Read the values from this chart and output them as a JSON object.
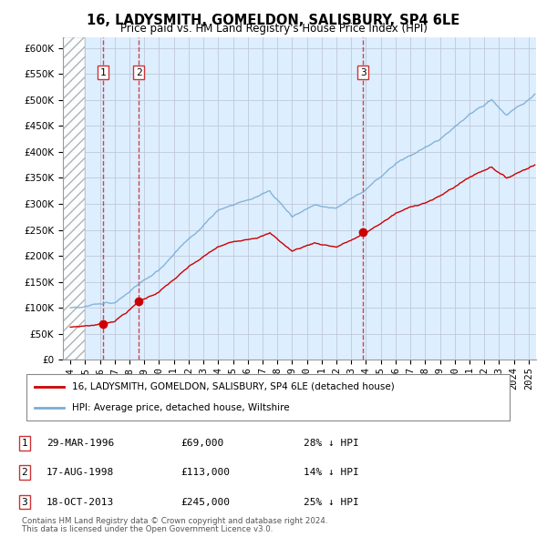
{
  "title": "16, LADYSMITH, GOMELDON, SALISBURY, SP4 6LE",
  "subtitle": "Price paid vs. HM Land Registry's House Price Index (HPI)",
  "legend_line1": "16, LADYSMITH, GOMELDON, SALISBURY, SP4 6LE (detached house)",
  "legend_line2": "HPI: Average price, detached house, Wiltshire",
  "footnote1": "Contains HM Land Registry data © Crown copyright and database right 2024.",
  "footnote2": "This data is licensed under the Open Government Licence v3.0.",
  "sale_color": "#cc0000",
  "hpi_color": "#7aadd4",
  "transactions": [
    {
      "num": 1,
      "date": "29-MAR-1996",
      "price": 69000,
      "pct": "28%",
      "year": 1996.23
    },
    {
      "num": 2,
      "date": "17-AUG-1998",
      "price": 113000,
      "pct": "14%",
      "year": 1998.63
    },
    {
      "num": 3,
      "date": "18-OCT-2013",
      "price": 245000,
      "pct": "25%",
      "year": 2013.8
    }
  ],
  "ylim": [
    0,
    620000
  ],
  "yticks": [
    0,
    50000,
    100000,
    150000,
    200000,
    250000,
    300000,
    350000,
    400000,
    450000,
    500000,
    550000,
    600000
  ],
  "xlim_start": 1993.5,
  "xlim_end": 2025.5,
  "hatch_end_year": 1995.0,
  "bg_color": "#ddeeff",
  "grid_color": "#c0c8d8",
  "vline_color": "#cc3333"
}
